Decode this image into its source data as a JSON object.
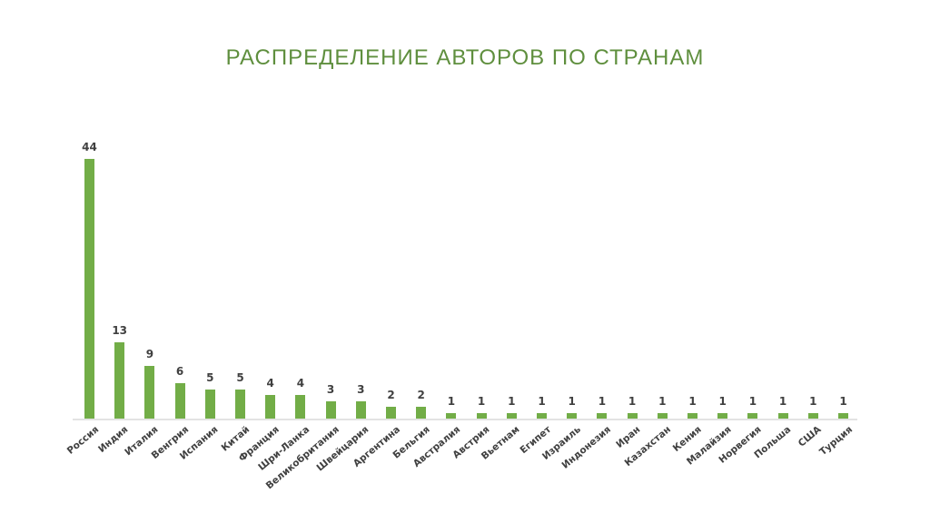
{
  "title": "РАСПРЕДЕЛЕНИЕ АВТОРОВ ПО СТРАНАМ",
  "colors": {
    "bar": "#72ad47",
    "title": "#5f8f3e",
    "label": "#404040",
    "axis": "#e3e3e3"
  },
  "chart_data": {
    "type": "bar",
    "title": "РАСПРЕДЕЛЕНИЕ АВТОРОВ ПО СТРАНАМ",
    "xlabel": "",
    "ylabel": "",
    "grid": false,
    "legend": null,
    "data_labels": true,
    "ylim": [
      0,
      44
    ],
    "categories": [
      "Россия",
      "Индия",
      "Италия",
      "Венгрия",
      "Испания",
      "Китай",
      "Франция",
      "Шри-Ланка",
      "Великобритания",
      "Швейцария",
      "Аргентина",
      "Бельгия",
      "Австралия",
      "Австрия",
      "Вьетнам",
      "Египет",
      "Израиль",
      "Индонезия",
      "Иран",
      "Казахстан",
      "Кения",
      "Малайзия",
      "Норвегия",
      "Польша",
      "США",
      "Турция"
    ],
    "values": [
      44,
      13,
      9,
      6,
      5,
      5,
      4,
      4,
      3,
      3,
      2,
      2,
      1,
      1,
      1,
      1,
      1,
      1,
      1,
      1,
      1,
      1,
      1,
      1,
      1,
      1
    ]
  }
}
